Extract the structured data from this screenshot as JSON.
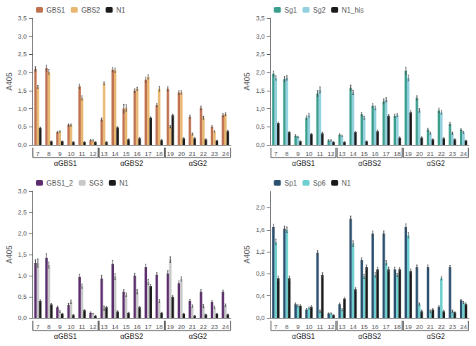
{
  "chart_data": [
    {
      "type": "bar",
      "ylabel": "A405",
      "categories": [
        7,
        8,
        9,
        10,
        11,
        12,
        13,
        14,
        15,
        16,
        17,
        18,
        19,
        20,
        21,
        22,
        23,
        24
      ],
      "series": [
        {
          "name": "GBS1",
          "color": "#c0714f",
          "values": [
            2.1,
            2.12,
            0.35,
            0.55,
            1.62,
            0.13,
            0.7,
            2.08,
            1.0,
            1.5,
            1.8,
            1.1,
            1.55,
            1.45,
            0.78,
            1.02,
            0.5,
            0.82
          ],
          "errors": [
            0.06,
            0.08,
            0.03,
            0.03,
            0.06,
            0.02,
            0.04,
            0.06,
            0.12,
            0.05,
            0.07,
            0.04,
            0.06,
            0.05,
            0.04,
            0.05,
            0.03,
            0.04
          ]
        },
        {
          "name": "GBS2",
          "color": "#e8b870",
          "values": [
            1.6,
            2.02,
            0.37,
            0.55,
            1.3,
            0.12,
            1.7,
            2.06,
            1.02,
            1.55,
            1.88,
            1.55,
            0.5,
            1.45,
            0.3,
            0.75,
            0.37,
            0.85
          ],
          "errors": [
            0.04,
            0.07,
            0.02,
            0.03,
            0.06,
            0.02,
            0.04,
            0.06,
            0.09,
            0.04,
            0.06,
            0.07,
            0.03,
            0.05,
            0.03,
            0.04,
            0.02,
            0.04
          ]
        },
        {
          "name": "N1",
          "color": "#1a1a1a",
          "values": [
            0.47,
            0.1,
            0.1,
            0.08,
            0.08,
            0.08,
            0.08,
            0.48,
            0.15,
            0.18,
            0.75,
            0.13,
            0.82,
            0.18,
            0.18,
            0.15,
            0.12,
            0.38
          ],
          "errors": [
            0.02,
            0.01,
            0.01,
            0.01,
            0.01,
            0.01,
            0.01,
            0.03,
            0.02,
            0.02,
            0.03,
            0.02,
            0.03,
            0.02,
            0.02,
            0.02,
            0.01,
            0.02
          ]
        }
      ],
      "ylim": [
        0,
        3.5
      ],
      "yticks": [
        {
          "value": 0.0,
          "label": "0,0"
        },
        {
          "value": 0.5,
          "label": "0,5"
        },
        {
          "value": 1.0,
          "label": "1,0"
        },
        {
          "value": 1.5,
          "label": "1,5"
        },
        {
          "value": 2.0,
          "label": "2,0"
        },
        {
          "value": 2.5,
          "label": "2,5"
        },
        {
          "value": 3.0,
          "label": "3,0"
        },
        {
          "value": 3.5,
          "label": "3,5"
        }
      ],
      "groups": [
        {
          "name": "αGBS1",
          "members": [
            7,
            8,
            9,
            10,
            11,
            12
          ]
        },
        {
          "name": "αGBS2",
          "members": [
            13,
            14,
            15,
            16,
            17,
            18
          ]
        },
        {
          "name": "αSG2",
          "members": [
            19,
            20,
            21,
            22,
            23,
            24
          ]
        }
      ],
      "legend": "upper left",
      "grid": false
    },
    {
      "type": "bar",
      "ylabel": "A405",
      "categories": [
        7,
        8,
        9,
        10,
        11,
        12,
        13,
        14,
        15,
        16,
        17,
        18,
        19,
        20,
        21,
        22,
        23,
        24
      ],
      "series": [
        {
          "name": "Sg1",
          "color": "#3a9e8c",
          "values": [
            1.97,
            1.82,
            0.25,
            0.75,
            1.42,
            0.12,
            0.28,
            1.58,
            0.85,
            1.08,
            1.2,
            0.8,
            2.05,
            1.3,
            0.42,
            0.95,
            0.58,
            0.42
          ],
          "errors": [
            0.07,
            0.07,
            0.03,
            0.05,
            0.08,
            0.02,
            0.03,
            0.07,
            0.05,
            0.06,
            0.07,
            0.05,
            0.1,
            0.06,
            0.04,
            0.06,
            0.04,
            0.03
          ]
        },
        {
          "name": "Sg2",
          "color": "#92d0e0",
          "values": [
            1.85,
            1.85,
            0.22,
            0.82,
            1.52,
            0.12,
            0.25,
            1.45,
            0.75,
            1.02,
            1.25,
            0.82,
            1.85,
            0.95,
            0.32,
            0.9,
            0.32,
            0.35
          ],
          "errors": [
            0.06,
            0.06,
            0.02,
            0.05,
            0.08,
            0.02,
            0.02,
            0.06,
            0.04,
            0.05,
            0.06,
            0.04,
            0.08,
            0.05,
            0.03,
            0.05,
            0.03,
            0.03
          ]
        },
        {
          "name": "N1_his",
          "color": "#1a1a1a",
          "values": [
            0.6,
            0.35,
            0.1,
            0.3,
            0.32,
            0.08,
            0.08,
            0.35,
            0.1,
            0.38,
            0.8,
            0.2,
            0.9,
            0.2,
            0.15,
            0.18,
            0.15,
            0.12
          ],
          "errors": [
            0.03,
            0.02,
            0.01,
            0.02,
            0.03,
            0.01,
            0.01,
            0.02,
            0.01,
            0.03,
            0.04,
            0.02,
            0.05,
            0.02,
            0.02,
            0.02,
            0.02,
            0.01
          ]
        }
      ],
      "ylim": [
        0,
        3.5
      ],
      "yticks": [
        {
          "value": 0.0,
          "label": "0,0"
        },
        {
          "value": 0.5,
          "label": "0,5"
        },
        {
          "value": 1.0,
          "label": "1,0"
        },
        {
          "value": 1.5,
          "label": "1,5"
        },
        {
          "value": 2.0,
          "label": "2,0"
        },
        {
          "value": 2.5,
          "label": "2,5"
        },
        {
          "value": 3.0,
          "label": "3,0"
        },
        {
          "value": 3.5,
          "label": "3,5"
        }
      ],
      "groups": [
        {
          "name": "αGBS1",
          "members": [
            7,
            8,
            9,
            10,
            11,
            12
          ]
        },
        {
          "name": "αGBS2",
          "members": [
            13,
            14,
            15,
            16,
            17,
            18
          ]
        },
        {
          "name": "αSG2",
          "members": [
            19,
            20,
            21,
            22,
            23,
            24
          ]
        }
      ],
      "legend": "upper left",
      "grid": false
    },
    {
      "type": "bar",
      "ylabel": "A405",
      "categories": [
        7,
        8,
        9,
        10,
        11,
        12,
        13,
        14,
        15,
        16,
        17,
        18,
        19,
        20,
        21,
        22,
        23,
        24
      ],
      "series": [
        {
          "name": "GBS1_2",
          "color": "#5c2d6e",
          "values": [
            1.3,
            1.42,
            0.25,
            0.3,
            0.97,
            0.12,
            0.93,
            1.28,
            0.62,
            1.0,
            1.2,
            1.02,
            1.05,
            0.82,
            0.4,
            0.62,
            0.38,
            0.62
          ],
          "errors": [
            0.08,
            0.1,
            0.03,
            0.04,
            0.06,
            0.02,
            0.08,
            0.08,
            0.05,
            0.06,
            0.07,
            0.05,
            0.07,
            0.06,
            0.04,
            0.05,
            0.03,
            0.04
          ]
        },
        {
          "name": "SG3",
          "color": "#c8c8c8",
          "values": [
            1.3,
            1.25,
            0.15,
            0.38,
            0.75,
            0.1,
            0.23,
            0.98,
            0.55,
            0.62,
            0.85,
            0.4,
            1.38,
            0.92,
            0.28,
            0.28,
            0.25,
            0.3
          ],
          "errors": [
            0.1,
            0.07,
            0.02,
            0.04,
            0.05,
            0.01,
            0.05,
            0.07,
            0.04,
            0.05,
            0.06,
            0.04,
            0.07,
            0.05,
            0.03,
            0.04,
            0.03,
            0.03
          ]
        },
        {
          "name": "N1",
          "color": "#1a1a1a",
          "values": [
            0.4,
            0.32,
            0.1,
            0.07,
            0.18,
            0.05,
            0.25,
            0.15,
            0.12,
            0.25,
            0.75,
            0.12,
            0.5,
            0.1,
            0.05,
            0.08,
            0.1,
            0.08
          ],
          "errors": [
            0.03,
            0.02,
            0.01,
            0.01,
            0.02,
            0.01,
            0.02,
            0.02,
            0.01,
            0.02,
            0.04,
            0.01,
            0.03,
            0.01,
            0.01,
            0.01,
            0.01,
            0.01
          ]
        }
      ],
      "ylim": [
        0,
        3.0
      ],
      "yticks": [
        {
          "value": 0.0,
          "label": "0,0"
        },
        {
          "value": 0.5,
          "label": "0,5"
        },
        {
          "value": 1.0,
          "label": "1,0"
        },
        {
          "value": 1.5,
          "label": "1,5"
        },
        {
          "value": 2.0,
          "label": "2,0"
        },
        {
          "value": 2.5,
          "label": "2,5"
        },
        {
          "value": 3.0,
          "label": "3,0"
        }
      ],
      "groups": [
        {
          "name": "αGBS1",
          "members": [
            7,
            8,
            9,
            10,
            11,
            12
          ]
        },
        {
          "name": "αGBS2",
          "members": [
            13,
            14,
            15,
            16,
            17,
            18
          ]
        },
        {
          "name": "αSG2",
          "members": [
            19,
            20,
            21,
            22,
            23,
            24
          ]
        }
      ],
      "legend": "upper left",
      "grid": false
    },
    {
      "type": "bar",
      "ylabel": "A405",
      "categories": [
        7,
        8,
        9,
        10,
        11,
        12,
        13,
        14,
        15,
        16,
        17,
        18,
        19,
        20,
        21,
        22,
        23,
        24
      ],
      "series": [
        {
          "name": "Sp1",
          "color": "#2b4f6e",
          "values": [
            1.65,
            1.62,
            0.25,
            0.15,
            1.18,
            0.08,
            0.25,
            1.8,
            1.05,
            1.53,
            1.53,
            0.88,
            1.65,
            0.92,
            0.92,
            0.2,
            0.92,
            0.32
          ],
          "errors": [
            0.05,
            0.05,
            0.02,
            0.02,
            0.04,
            0.01,
            0.02,
            0.05,
            0.04,
            0.05,
            0.05,
            0.04,
            0.06,
            0.04,
            0.04,
            0.02,
            0.03,
            0.02
          ]
        },
        {
          "name": "Sp6",
          "color": "#6dcfcf",
          "values": [
            1.38,
            1.6,
            0.22,
            0.18,
            0.12,
            0.08,
            0.15,
            1.35,
            0.75,
            0.78,
            1.0,
            0.78,
            1.5,
            0.25,
            0.12,
            0.72,
            0.12,
            0.28
          ],
          "errors": [
            0.05,
            0.05,
            0.02,
            0.02,
            0.02,
            0.01,
            0.02,
            0.05,
            0.04,
            0.04,
            0.04,
            0.03,
            0.05,
            0.02,
            0.02,
            0.03,
            0.02,
            0.02
          ]
        },
        {
          "name": "N1",
          "color": "#1a1a1a",
          "values": [
            0.72,
            0.72,
            0.22,
            0.2,
            0.78,
            0.05,
            0.35,
            0.52,
            0.92,
            0.88,
            0.88,
            0.88,
            0.85,
            0.12,
            0.15,
            0.12,
            0.1,
            0.25
          ],
          "errors": [
            0.04,
            0.04,
            0.02,
            0.02,
            0.04,
            0.01,
            0.02,
            0.03,
            0.04,
            0.04,
            0.04,
            0.03,
            0.04,
            0.02,
            0.02,
            0.02,
            0.01,
            0.02
          ]
        }
      ],
      "ylim": [
        0,
        2.3
      ],
      "yticks": [
        {
          "value": 0.0,
          "label": "0,0"
        },
        {
          "value": 0.4,
          "label": "0,4"
        },
        {
          "value": 0.8,
          "label": "0,8"
        },
        {
          "value": 1.2,
          "label": "1,2"
        },
        {
          "value": 1.6,
          "label": "1,6"
        },
        {
          "value": 2.0,
          "label": "2,0"
        }
      ],
      "groups": [
        {
          "name": "αGBS1",
          "members": [
            7,
            8,
            9,
            10,
            11,
            12
          ]
        },
        {
          "name": "αGBS2",
          "members": [
            13,
            14,
            15,
            16,
            17,
            18
          ]
        },
        {
          "name": "αSG2",
          "members": [
            19,
            20,
            21,
            22,
            23,
            24
          ]
        }
      ],
      "legend": "upper left",
      "grid": false
    }
  ]
}
